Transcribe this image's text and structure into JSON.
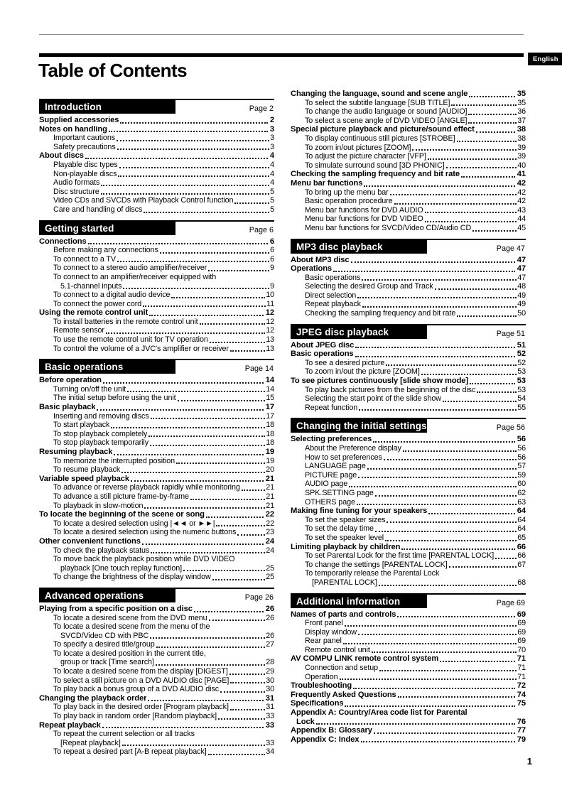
{
  "page": {
    "language_tag": "English",
    "title": "Table of Contents",
    "page_number": "1"
  },
  "toc": {
    "columns": [
      {
        "sections": [
          {
            "header": "Introduction",
            "page_label": "Page 2",
            "entries": [
              {
                "text": "Supplied accessories",
                "page": "2",
                "bold": true
              },
              {
                "text": "Notes on handling",
                "page": "3",
                "bold": true
              },
              {
                "text": "Important cautions",
                "page": "3"
              },
              {
                "text": "Safety precautions",
                "page": "3"
              },
              {
                "text": "About discs",
                "page": "4",
                "bold": true
              },
              {
                "text": "Playable disc types",
                "page": "4"
              },
              {
                "text": "Non-playable discs",
                "page": "4"
              },
              {
                "text": "Audio formats",
                "page": "4"
              },
              {
                "text": "Disc structure",
                "page": "5"
              },
              {
                "text": "Video CDs and SVCDs with Playback Control function",
                "page": "5"
              },
              {
                "text": "Care and handling of discs",
                "page": "5"
              }
            ]
          },
          {
            "header": "Getting started",
            "page_label": "Page 6",
            "entries": [
              {
                "text": "Connections",
                "page": "6",
                "bold": true
              },
              {
                "text": "Before making any connections",
                "page": "6"
              },
              {
                "text": "To connect to a TV",
                "page": "6"
              },
              {
                "text": "To connect to a stereo audio amplifier/receiver",
                "page": "9"
              },
              {
                "text": "To connect to an amplifier/receiver equipped with",
                "line2": "5.1-channel inputs",
                "page": "9"
              },
              {
                "text": "To connect to a digital audio device",
                "page": "10"
              },
              {
                "text": "To connect the power cord",
                "page": "11"
              },
              {
                "text": "Using the remote control unit",
                "page": "12",
                "bold": true
              },
              {
                "text": "To install batteries in the remote control unit",
                "page": "12"
              },
              {
                "text": "Remote sensor",
                "page": "12"
              },
              {
                "text": "To use the remote control unit for TV operation",
                "page": "13"
              },
              {
                "text": "To control the volume of a JVC's amplifier or receiver",
                "page": "13"
              }
            ]
          },
          {
            "header": "Basic operations",
            "page_label": "Page 14",
            "entries": [
              {
                "text": "Before operation",
                "page": "14",
                "bold": true
              },
              {
                "text": "Turning on/off the unit",
                "page": "14"
              },
              {
                "text": "The initial setup before using the unit",
                "page": "15"
              },
              {
                "text": "Basic playback",
                "page": "17",
                "bold": true
              },
              {
                "text": "Inserting and removing discs",
                "page": "17"
              },
              {
                "text": "To start playback",
                "page": "18"
              },
              {
                "text": "To stop playback completely",
                "page": "18"
              },
              {
                "text": "To stop playback temporarily",
                "page": "18"
              },
              {
                "text": "Resuming playback",
                "page": "19",
                "bold": true
              },
              {
                "text": "To memorize the interrupted position",
                "page": "19"
              },
              {
                "text": "To resume playback",
                "page": "20"
              },
              {
                "text": "Variable speed playback",
                "page": "21",
                "bold": true
              },
              {
                "text": "To advance or reverse playback rapidly while monitoring",
                "page": "21"
              },
              {
                "text": "To advance a still picture frame-by-frame",
                "page": "21"
              },
              {
                "text": "To playback in slow-motion",
                "page": "21"
              },
              {
                "text": "To locate the beginning of the scene or song",
                "page": "22",
                "bold": true
              },
              {
                "text": "To locate a desired selection using |◄◄ or ►►|",
                "page": "22"
              },
              {
                "text": "To locate a desired selection using the numeric buttons",
                "page": "23"
              },
              {
                "text": "Other convenient functions",
                "page": "24",
                "bold": true
              },
              {
                "text": "To check the playback status",
                "page": "24"
              },
              {
                "text": "To move back the playback position while DVD VIDEO",
                "line2": "playback [One touch replay function]",
                "page": "25"
              },
              {
                "text": "To change the brightness of the display window",
                "page": "25"
              }
            ]
          },
          {
            "header": "Advanced operations",
            "page_label": "Page 26",
            "entries": [
              {
                "text": "Playing from a specific position on a disc",
                "page": "26",
                "bold": true
              },
              {
                "text": "To locate a desired scene from the DVD menu",
                "page": "26"
              },
              {
                "text": "To locate a desired scene from the menu of the",
                "line2": "SVCD/Video CD with PBC",
                "page": "26"
              },
              {
                "text": "To specify a desired title/group",
                "page": "27"
              },
              {
                "text": "To locate a desired position in the current title,",
                "line2": "group or track [Time search]",
                "page": "28"
              },
              {
                "text": "To locate a desired scene from the display [DIGEST]",
                "page": "29"
              },
              {
                "text": "To select a still picture on a DVD AUDIO disc [PAGE]",
                "page": "30"
              },
              {
                "text": "To play back a bonus group of a DVD AUDIO disc",
                "page": "30"
              },
              {
                "text": "Changing the playback order",
                "page": "31",
                "bold": true
              },
              {
                "text": "To play back in the desired order [Program playback]",
                "page": "31"
              },
              {
                "text": "To play back in random order [Random playback]",
                "page": "33"
              },
              {
                "text": "Repeat playback",
                "page": "33",
                "bold": true
              },
              {
                "text": "To repeat the current selection or all tracks",
                "line2": "[Repeat playback]",
                "page": "33"
              },
              {
                "text": "To repeat a desired part [A-B repeat playback]",
                "page": "34"
              }
            ]
          }
        ]
      },
      {
        "sections": [
          {
            "header": null,
            "page_label": null,
            "entries": [
              {
                "text": "Changing the language, sound and scene angle",
                "page": "35",
                "bold": true
              },
              {
                "text": "To select the subtitle language [SUB TITLE]",
                "page": "35"
              },
              {
                "text": "To change the audio language or sound [AUDIO]",
                "page": "36"
              },
              {
                "text": "To select a scene angle of DVD VIDEO [ANGLE]",
                "page": "37"
              },
              {
                "text": "Special picture playback and picture/sound effect",
                "page": "38",
                "bold": true
              },
              {
                "text": "To display continuous still pictures [STROBE]",
                "page": "38"
              },
              {
                "text": "To zoom in/out pictures [ZOOM]",
                "page": "39"
              },
              {
                "text": "To adjust the picture character [VFP]",
                "page": "39"
              },
              {
                "text": "To simulate surround sound [3D PHONIC]",
                "page": "40"
              },
              {
                "text": "Checking the sampling frequency and bit rate",
                "page": "41",
                "bold": true
              },
              {
                "text": "Menu bar functions",
                "page": "42",
                "bold": true
              },
              {
                "text": "To bring up the menu bar",
                "page": "42"
              },
              {
                "text": "Basic operation procedure",
                "page": "42"
              },
              {
                "text": "Menu bar functions for DVD AUDIO",
                "page": "43"
              },
              {
                "text": "Menu bar functions for DVD VIDEO",
                "page": "44"
              },
              {
                "text": "Menu bar functions for SVCD/Video CD/Audio CD",
                "page": "45"
              }
            ]
          },
          {
            "header": "MP3 disc playback",
            "page_label": "Page 47",
            "entries": [
              {
                "text": "About MP3 disc",
                "page": "47",
                "bold": true
              },
              {
                "text": "Operations",
                "page": "47",
                "bold": true
              },
              {
                "text": "Basic operations",
                "page": "47"
              },
              {
                "text": "Selecting the desired Group and Track",
                "page": "48"
              },
              {
                "text": "Direct selection",
                "page": "49"
              },
              {
                "text": "Repeat playback",
                "page": "49"
              },
              {
                "text": "Checking the sampling frequency and bit rate",
                "page": "50"
              }
            ]
          },
          {
            "header": "JPEG disc playback",
            "page_label": "Page 51",
            "entries": [
              {
                "text": "About JPEG disc",
                "page": "51",
                "bold": true
              },
              {
                "text": "Basic operations",
                "page": "52",
                "bold": true
              },
              {
                "text": "To see a desired picture",
                "page": "52"
              },
              {
                "text": "To zoom in/out the picture [ZOOM]",
                "page": "53"
              },
              {
                "text": "To see pictures continuously [slide show mode]",
                "page": "53",
                "bold": true
              },
              {
                "text": "To play back pictures from the beginning of the disc",
                "page": "53"
              },
              {
                "text": "Selecting the start point of the slide show",
                "page": "54"
              },
              {
                "text": "Repeat function",
                "page": "55"
              }
            ]
          },
          {
            "header": "Changing the initial settings",
            "page_label": "Page 56",
            "entries": [
              {
                "text": "Selecting preferences",
                "page": "56",
                "bold": true
              },
              {
                "text": "About the Preference display",
                "page": "56"
              },
              {
                "text": "How to set preferences",
                "page": "56"
              },
              {
                "text": "LANGUAGE page",
                "page": "57"
              },
              {
                "text": "PICTURE page",
                "page": "59"
              },
              {
                "text": "AUDIO page",
                "page": "60"
              },
              {
                "text": "SPK.SETTING page",
                "page": "62"
              },
              {
                "text": "OTHERS page",
                "page": "63"
              },
              {
                "text": "Making fine tuning for your speakers",
                "page": "64",
                "bold": true
              },
              {
                "text": "To set the speaker sizes",
                "page": "64"
              },
              {
                "text": "To set the delay time",
                "page": "64"
              },
              {
                "text": "To set the speaker level",
                "page": "65"
              },
              {
                "text": "Limiting playback by children",
                "page": "66",
                "bold": true
              },
              {
                "text": "To set Parental Lock for the first time [PARENTAL LOCK]",
                "page": "66"
              },
              {
                "text": "To change the settings [PARENTAL LOCK]",
                "page": "67"
              },
              {
                "text": "To temporarily release the Parental Lock",
                "line2": "[PARENTAL LOCK]",
                "page": "68"
              }
            ]
          },
          {
            "header": "Additional information",
            "page_label": "Page 69",
            "entries": [
              {
                "text": "Names of parts and controls",
                "page": "69",
                "bold": true
              },
              {
                "text": "Front panel",
                "page": "69"
              },
              {
                "text": "Display window",
                "page": "69"
              },
              {
                "text": "Rear panel",
                "page": "69"
              },
              {
                "text": "Remote control unit",
                "page": "70"
              },
              {
                "text": "AV COMPU LINK remote control system",
                "page": "71",
                "bold": true
              },
              {
                "text": "Connection and setup",
                "page": "71"
              },
              {
                "text": "Operation",
                "page": "71"
              },
              {
                "text": "Troubleshooting",
                "page": "72",
                "bold": true
              },
              {
                "text": "Frequently Asked Questions",
                "page": "74",
                "bold": true
              },
              {
                "text": "Specifications",
                "page": "75",
                "bold": true
              },
              {
                "text": "Appendix A: Country/Area code list for Parental",
                "line2": "Lock",
                "page": "76",
                "bold": true
              },
              {
                "text": "Appendix B: Glossary",
                "page": "77",
                "bold": true
              },
              {
                "text": "Appendix C: Index",
                "page": "79",
                "bold": true
              }
            ]
          }
        ]
      }
    ]
  }
}
